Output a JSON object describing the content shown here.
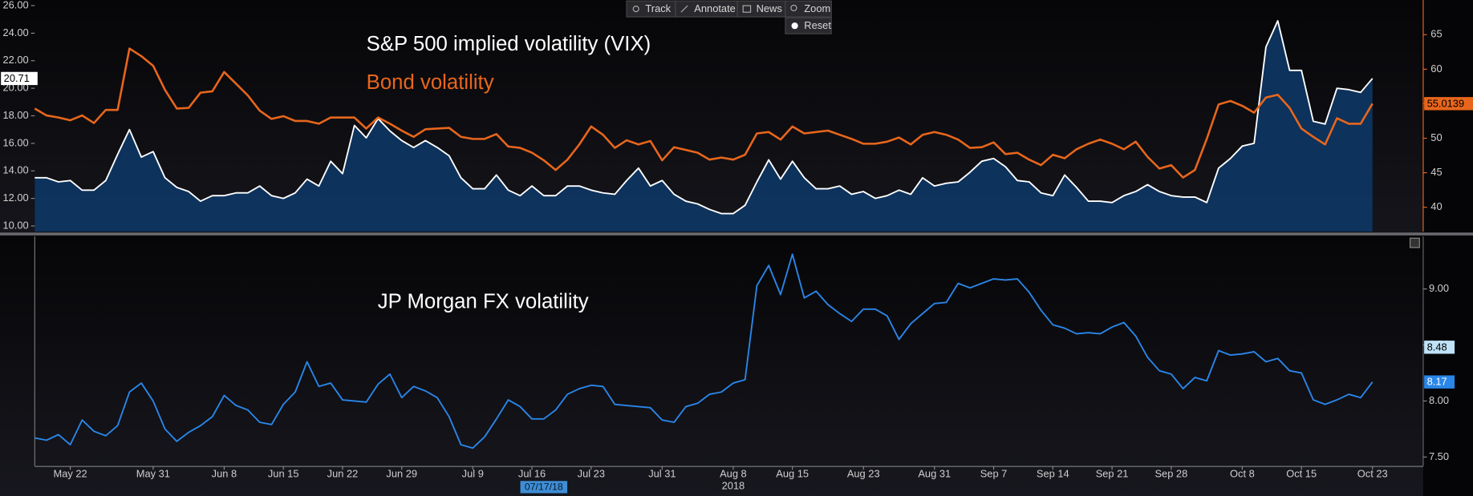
{
  "toolbar": [
    "Track",
    "Annotate",
    "News",
    "Zoom"
  ],
  "reset_button": "Reset",
  "chart_data": [
    {
      "type": "line",
      "ylim": [
        9.59,
        26.41
      ],
      "yticks": [
        {
          "value": 10,
          "label": "10.00"
        },
        {
          "value": 12,
          "label": "12.00"
        },
        {
          "value": 14,
          "label": "14.00"
        },
        {
          "value": 16,
          "label": "16.00"
        },
        {
          "value": 18,
          "label": "18.00"
        },
        {
          "value": 20,
          "label": "20.00"
        },
        {
          "value": 22,
          "label": "22.00"
        },
        {
          "value": 24,
          "label": "24.00"
        },
        {
          "value": 26,
          "label": "26.00"
        }
      ],
      "y2lim": [
        36.47,
        70.03
      ],
      "y2ticks": [
        40,
        45,
        50,
        55,
        60,
        65
      ],
      "series": [
        {
          "name": "S&P 500 implied volatility (VIX)",
          "color": "#ffffff",
          "area_color": "#0e3560",
          "values": [
            13.5,
            13.5,
            13.2,
            13.3,
            12.6,
            12.6,
            13.3,
            15.2,
            17.0,
            15.0,
            15.4,
            13.5,
            12.8,
            12.5,
            11.8,
            12.2,
            12.2,
            12.4,
            12.4,
            12.9,
            12.2,
            12.0,
            12.4,
            13.4,
            12.9,
            14.7,
            13.8,
            17.3,
            16.4,
            17.8,
            16.9,
            16.2,
            15.7,
            16.2,
            15.7,
            15.1,
            13.5,
            12.7,
            12.7,
            13.7,
            12.6,
            12.2,
            12.9,
            12.2,
            12.2,
            12.9,
            12.9,
            12.6,
            12.4,
            12.3,
            13.3,
            14.2,
            12.9,
            13.3,
            12.3,
            11.8,
            11.6,
            11.2,
            10.9,
            10.9,
            11.5,
            13.2,
            14.8,
            13.4,
            14.7,
            13.5,
            12.7,
            12.7,
            12.9,
            12.3,
            12.5,
            12.0,
            12.2,
            12.6,
            12.3,
            13.5,
            12.9,
            13.1,
            13.2,
            13.9,
            14.7,
            14.9,
            14.3,
            13.3,
            13.2,
            12.4,
            12.2,
            13.7,
            12.8,
            11.8,
            11.8,
            11.7,
            12.2,
            12.5,
            13.0,
            12.5,
            12.2,
            12.1,
            12.1,
            11.7,
            14.2,
            14.9,
            15.8,
            16.0,
            23.0,
            24.9,
            21.3,
            21.3,
            17.6,
            17.4,
            20.0,
            19.9,
            19.7,
            20.71
          ]
        },
        {
          "name": "Bond volatility",
          "color": "#e8661c",
          "axis": "y2",
          "values": [
            54.3,
            53.3,
            53.0,
            52.6,
            53.3,
            52.2,
            54.1,
            54.1,
            63.0,
            61.9,
            60.5,
            57.0,
            54.3,
            54.4,
            56.6,
            56.8,
            59.6,
            57.9,
            56.2,
            54.0,
            52.8,
            53.2,
            52.5,
            52.5,
            52.1,
            53.0,
            53.0,
            53.0,
            51.4,
            53.0,
            52.1,
            51.1,
            50.2,
            51.3,
            51.4,
            51.5,
            50.2,
            49.9,
            49.9,
            50.6,
            48.8,
            48.6,
            47.9,
            46.8,
            45.4,
            46.9,
            49.1,
            51.7,
            50.5,
            48.6,
            49.7,
            49.1,
            49.6,
            46.8,
            48.7,
            48.3,
            47.9,
            46.9,
            47.2,
            46.9,
            47.6,
            50.7,
            50.9,
            49.8,
            51.7,
            50.7,
            50.9,
            51.1,
            50.5,
            49.9,
            49.2,
            49.2,
            49.5,
            50.1,
            49.1,
            50.5,
            50.9,
            50.5,
            49.8,
            48.6,
            48.7,
            49.4,
            47.7,
            47.9,
            46.9,
            46.1,
            47.6,
            47.1,
            48.4,
            49.2,
            49.8,
            49.2,
            48.4,
            49.5,
            47.3,
            45.6,
            46.1,
            44.3,
            45.4,
            49.9,
            54.9,
            55.4,
            54.7,
            53.7,
            55.9,
            56.3,
            54.4,
            51.4,
            50.2,
            49.1,
            52.9,
            52.1,
            52.1,
            55.0139
          ]
        }
      ]
    },
    {
      "type": "line",
      "categories": [
        null,
        null,
        null,
        "May 22",
        null,
        null,
        null,
        null,
        null,
        null,
        "May 31",
        null,
        null,
        null,
        null,
        null,
        "Jun 8",
        null,
        null,
        null,
        null,
        "Jun 15",
        null,
        null,
        null,
        null,
        "Jun 22",
        null,
        null,
        null,
        null,
        "Jun 29",
        null,
        null,
        null,
        null,
        null,
        "Jul 9",
        null,
        null,
        null,
        null,
        "Jul 16",
        null,
        null,
        null,
        null,
        "Jul 23",
        null,
        null,
        null,
        null,
        null,
        "Jul 31",
        null,
        null,
        null,
        null,
        null,
        "Aug 8",
        null,
        null,
        null,
        null,
        "Aug 15",
        null,
        null,
        null,
        null,
        null,
        "Aug 23",
        null,
        null,
        null,
        null,
        null,
        "Aug 31",
        null,
        null,
        null,
        null,
        "Sep 7",
        null,
        null,
        null,
        null,
        "Sep 14",
        null,
        null,
        null,
        null,
        "Sep 21",
        null,
        null,
        null,
        null,
        "Sep 28",
        null,
        null,
        null,
        null,
        null,
        "Oct 8",
        null,
        null,
        null,
        null,
        "Oct 15",
        null,
        null,
        null,
        null,
        null,
        "Oct 23"
      ],
      "year_label": "2018",
      "cursor_label": "07/17/18",
      "ylim": [
        7.42,
        9.47
      ],
      "yticks": [
        {
          "value": 7.5,
          "label": "7.50"
        },
        {
          "value": 8,
          "label": "8.00"
        },
        {
          "value": 8.5,
          "label": "8.50"
        },
        {
          "value": 9,
          "label": "9.00"
        }
      ],
      "marker_value": 8.48,
      "series": [
        {
          "name": "JP Morgan FX volatility",
          "color": "#2a86e8",
          "values": [
            7.67,
            7.65,
            7.7,
            7.61,
            7.83,
            7.73,
            7.69,
            7.78,
            8.08,
            8.16,
            8.0,
            7.75,
            7.64,
            7.72,
            7.78,
            7.86,
            8.05,
            7.96,
            7.92,
            7.81,
            7.79,
            7.97,
            8.08,
            8.35,
            8.13,
            8.16,
            8.01,
            8.0,
            7.99,
            8.15,
            8.24,
            8.03,
            8.13,
            8.09,
            8.03,
            7.86,
            7.61,
            7.58,
            7.68,
            7.84,
            8.01,
            7.95,
            7.84,
            7.84,
            7.92,
            8.06,
            8.11,
            8.14,
            8.13,
            7.97,
            7.96,
            7.95,
            7.94,
            7.83,
            7.81,
            7.95,
            7.98,
            8.06,
            8.08,
            8.16,
            8.19,
            9.03,
            9.21,
            8.95,
            9.31,
            8.92,
            8.98,
            8.86,
            8.78,
            8.71,
            8.82,
            8.82,
            8.76,
            8.55,
            8.69,
            8.78,
            8.87,
            8.88,
            9.05,
            9.01,
            9.05,
            9.09,
            9.08,
            9.09,
            8.97,
            8.81,
            8.68,
            8.65,
            8.6,
            8.61,
            8.6,
            8.66,
            8.7,
            8.58,
            8.39,
            8.27,
            8.24,
            8.11,
            8.21,
            8.18,
            8.45,
            8.41,
            8.42,
            8.44,
            8.35,
            8.38,
            8.27,
            8.25,
            8.01,
            7.97,
            8.01,
            8.06,
            8.03,
            8.17
          ]
        }
      ]
    }
  ]
}
